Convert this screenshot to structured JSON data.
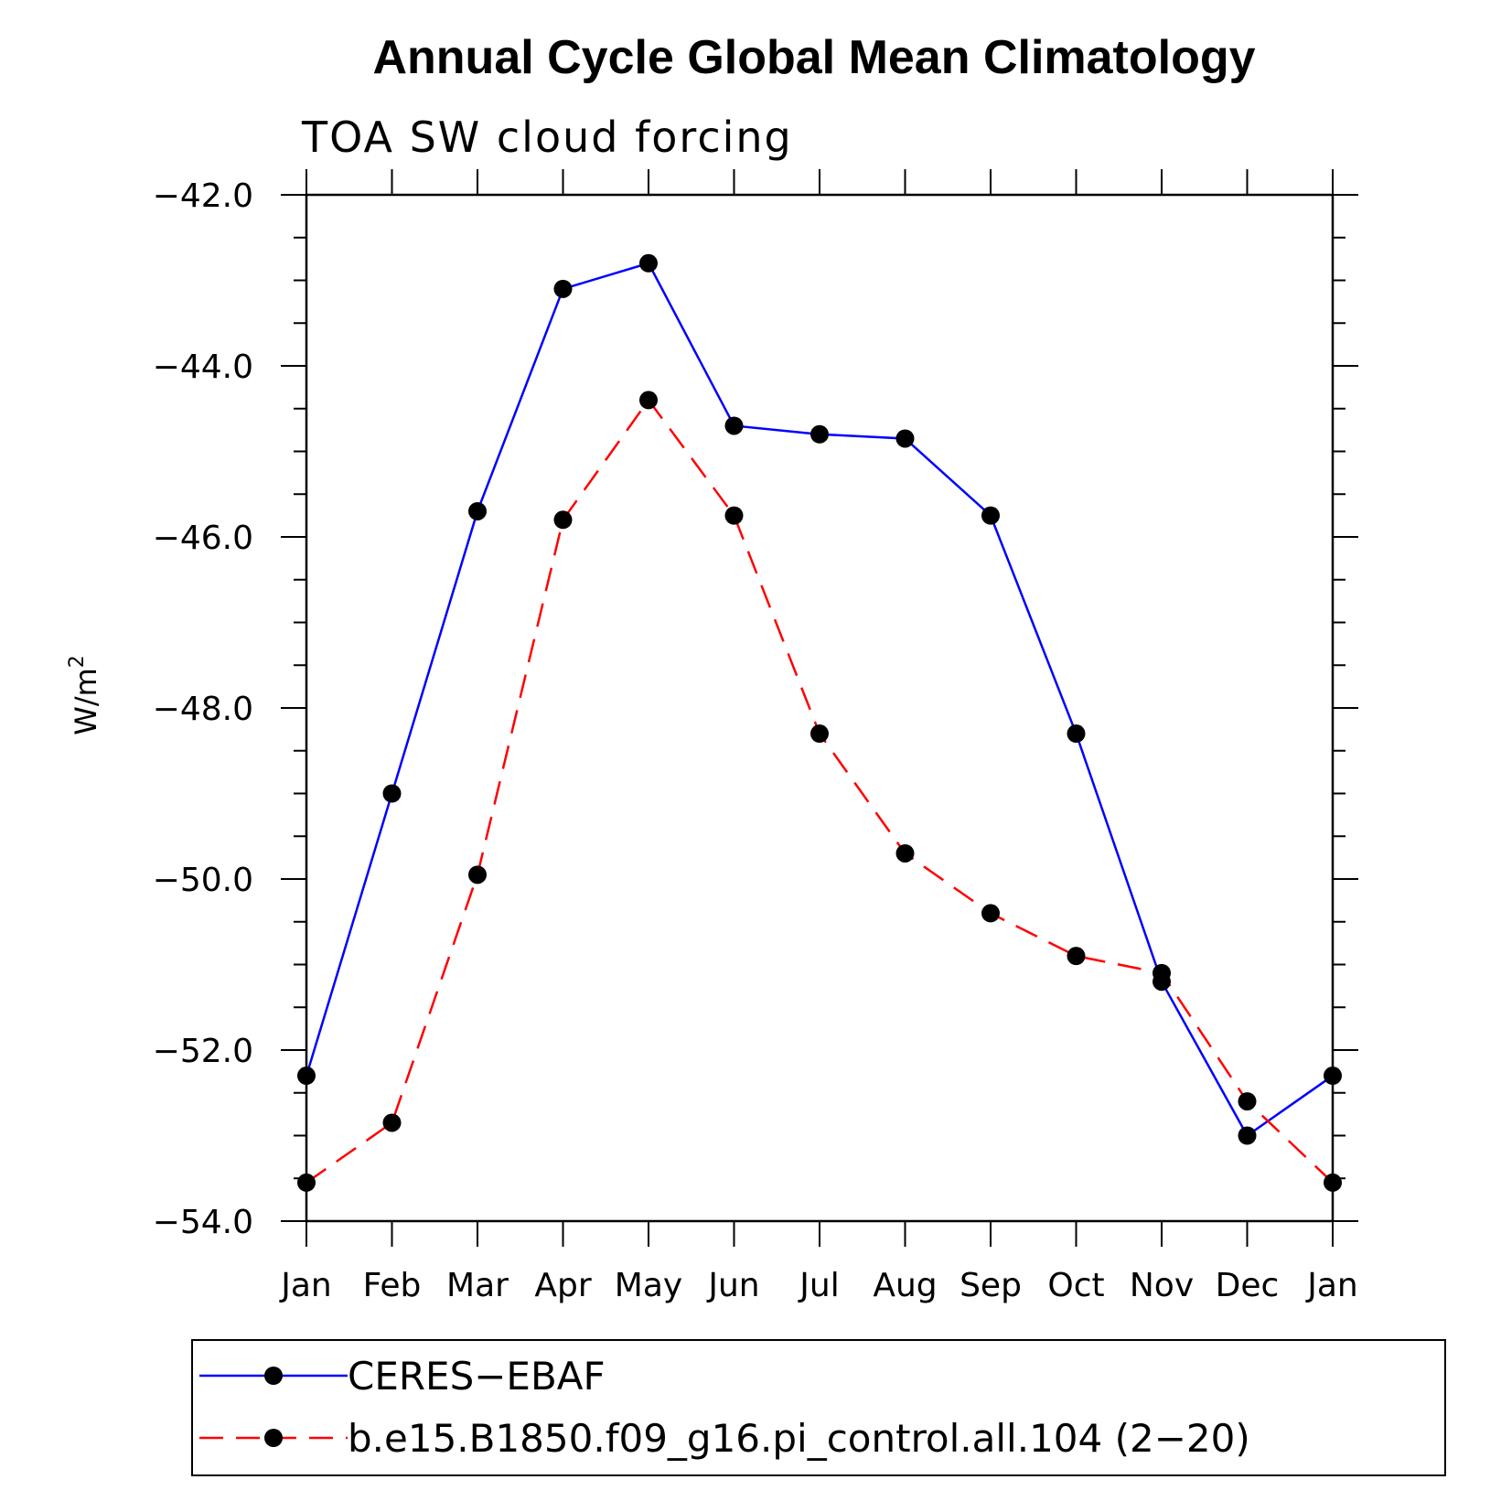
{
  "chart_data": {
    "type": "line",
    "title": "Annual Cycle Global Mean Climatology",
    "subtitle": "TOA SW cloud forcing",
    "ylabel": "W/m",
    "ylabel_superscript": "2",
    "xlabel": "",
    "categories": [
      "Jan",
      "Feb",
      "Mar",
      "Apr",
      "May",
      "Jun",
      "Jul",
      "Aug",
      "Sep",
      "Oct",
      "Nov",
      "Dec",
      "Jan"
    ],
    "ylim": [
      -54.0,
      -42.0
    ],
    "yticks": [
      "-42.0",
      "-44.0",
      "-46.0",
      "-48.0",
      "-50.0",
      "-52.0",
      "-54.0"
    ],
    "grid": false,
    "legend_position": "bottom",
    "series": [
      {
        "name": "CERES-EBAF",
        "color": "#0000ff",
        "dash": "solid",
        "marker": "filled-circle",
        "values": [
          -52.3,
          -49.0,
          -45.7,
          -43.1,
          -42.8,
          -44.7,
          -44.8,
          -44.85,
          -45.75,
          -48.3,
          -51.2,
          -53.0,
          -52.3
        ]
      },
      {
        "name": "b.e15.B1850.f09_g16.pi_control.all.104 (2-20)",
        "color": "#ff0000",
        "dash": "dashed",
        "marker": "filled-circle",
        "values": [
          -53.55,
          -52.85,
          -49.95,
          -45.8,
          -44.4,
          -45.75,
          -48.3,
          -49.7,
          -50.4,
          -50.9,
          -51.1,
          -52.6,
          -53.55
        ]
      }
    ]
  }
}
